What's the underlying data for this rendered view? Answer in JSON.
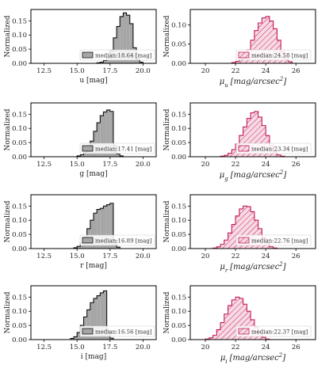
{
  "chart_data": [
    {
      "type": "histogram",
      "ylabel": "Normalized",
      "xlabel": "u [mag]",
      "xlim": [
        11.5,
        21.0
      ],
      "ylim": [
        0,
        0.19
      ],
      "yticks": [
        "0.00",
        "0.05",
        "0.10",
        "0.15"
      ],
      "xticks": [
        "12.5",
        "15.0",
        "17.5",
        "20.0"
      ],
      "style": "gray",
      "legend": "median:18.64 [mag]",
      "bin_width": 0.25,
      "bins_start": 16.5,
      "values": [
        0.002,
        0.004,
        0.01,
        0.02,
        0.045,
        0.09,
        0.13,
        0.165,
        0.178,
        0.17,
        0.14,
        0.055,
        0.015,
        0.004
      ]
    },
    {
      "type": "histogram",
      "ylabel": "Normalized",
      "xlabel": "μ_u [mag/arcsec²]",
      "xlim": [
        19.0,
        27.3
      ],
      "ylim": [
        0,
        0.14
      ],
      "yticks": [
        "0.00",
        "0.05",
        "0.10"
      ],
      "xticks": [
        "20",
        "22",
        "24",
        "26"
      ],
      "style": "pink",
      "legend": "median:24.58 [mag]",
      "bin_width": 0.25,
      "bins_start": 21.75,
      "values": [
        0.002,
        0.005,
        0.01,
        0.02,
        0.035,
        0.06,
        0.085,
        0.105,
        0.118,
        0.122,
        0.11,
        0.09,
        0.06,
        0.03,
        0.012,
        0.004
      ]
    },
    {
      "type": "histogram",
      "ylabel": "Normalized",
      "xlabel": "g [mag]",
      "xlim": [
        11.5,
        21.0
      ],
      "ylim": [
        0,
        0.19
      ],
      "yticks": [
        "0.00",
        "0.05",
        "0.10",
        "0.15"
      ],
      "xticks": [
        "12.5",
        "15.0",
        "17.5",
        "20.0"
      ],
      "style": "gray",
      "legend": "median:17.41 [mag]",
      "bin_width": 0.25,
      "bins_start": 15.0,
      "values": [
        0.003,
        0.007,
        0.015,
        0.03,
        0.055,
        0.09,
        0.12,
        0.145,
        0.158,
        0.165,
        0.16,
        0.04,
        0.01,
        0.003
      ]
    },
    {
      "type": "histogram",
      "ylabel": "Normalized",
      "xlabel": "μ_g [mag/arcsec²]",
      "xlim": [
        19.0,
        27.3
      ],
      "ylim": [
        0,
        0.19
      ],
      "yticks": [
        "0.00",
        "0.05",
        "0.10",
        "0.15"
      ],
      "xticks": [
        "20",
        "22",
        "24",
        "26"
      ],
      "style": "pink",
      "legend": "median:23.34 [mag]",
      "bin_width": 0.25,
      "bins_start": 21.0,
      "values": [
        0.002,
        0.005,
        0.012,
        0.025,
        0.045,
        0.075,
        0.105,
        0.135,
        0.155,
        0.16,
        0.14,
        0.11,
        0.075,
        0.04,
        0.018,
        0.006,
        0.002
      ]
    },
    {
      "type": "histogram",
      "ylabel": "Normalized",
      "xlabel": "r [mag]",
      "xlim": [
        11.5,
        21.0
      ],
      "ylim": [
        0,
        0.19
      ],
      "yticks": [
        "0.00",
        "0.05",
        "0.10",
        "0.15"
      ],
      "xticks": [
        "12.5",
        "15.0",
        "17.5",
        "20.0"
      ],
      "style": "gray",
      "legend": "median:16.89 [mag]",
      "bin_width": 0.25,
      "bins_start": 14.75,
      "values": [
        0.003,
        0.008,
        0.02,
        0.04,
        0.07,
        0.1,
        0.125,
        0.138,
        0.142,
        0.15,
        0.155,
        0.16,
        0.03,
        0.005
      ]
    },
    {
      "type": "histogram",
      "ylabel": "Normalized",
      "xlabel": "μ_r [mag/arcsec²]",
      "xlim": [
        19.0,
        27.3
      ],
      "ylim": [
        0,
        0.19
      ],
      "yticks": [
        "0.00",
        "0.05",
        "0.10",
        "0.15"
      ],
      "xticks": [
        "20",
        "22",
        "24",
        "26"
      ],
      "style": "pink",
      "legend": "median:22.76 [mag]",
      "bin_width": 0.25,
      "bins_start": 20.5,
      "values": [
        0.002,
        0.006,
        0.015,
        0.03,
        0.055,
        0.085,
        0.115,
        0.14,
        0.15,
        0.148,
        0.13,
        0.1,
        0.07,
        0.04,
        0.018,
        0.006,
        0.002
      ]
    },
    {
      "type": "histogram",
      "ylabel": "Normalized",
      "xlabel": "i [mag]",
      "xlim": [
        11.5,
        21.0
      ],
      "ylim": [
        0,
        0.19
      ],
      "yticks": [
        "0.00",
        "0.05",
        "0.10",
        "0.15"
      ],
      "xticks": [
        "12.5",
        "15.0",
        "17.5",
        "20.0"
      ],
      "style": "gray",
      "legend": "median:16.56 [mag]",
      "bin_width": 0.25,
      "bins_start": 14.5,
      "values": [
        0.004,
        0.01,
        0.025,
        0.05,
        0.08,
        0.105,
        0.13,
        0.145,
        0.155,
        0.165,
        0.172,
        0.03,
        0.005
      ]
    },
    {
      "type": "histogram",
      "ylabel": "Normalized",
      "xlabel": "μ_i [mag/arcsec²]",
      "xlim": [
        19.0,
        27.3
      ],
      "ylim": [
        0,
        0.19
      ],
      "yticks": [
        "0.00",
        "0.05",
        "0.10",
        "0.15"
      ],
      "xticks": [
        "20",
        "22",
        "24",
        "26"
      ],
      "style": "pink",
      "legend": "median:22.37 [mag]",
      "bin_width": 0.25,
      "bins_start": 20.0,
      "values": [
        0.002,
        0.006,
        0.015,
        0.035,
        0.06,
        0.09,
        0.12,
        0.14,
        0.15,
        0.145,
        0.125,
        0.1,
        0.07,
        0.045,
        0.022,
        0.008,
        0.002
      ]
    }
  ]
}
